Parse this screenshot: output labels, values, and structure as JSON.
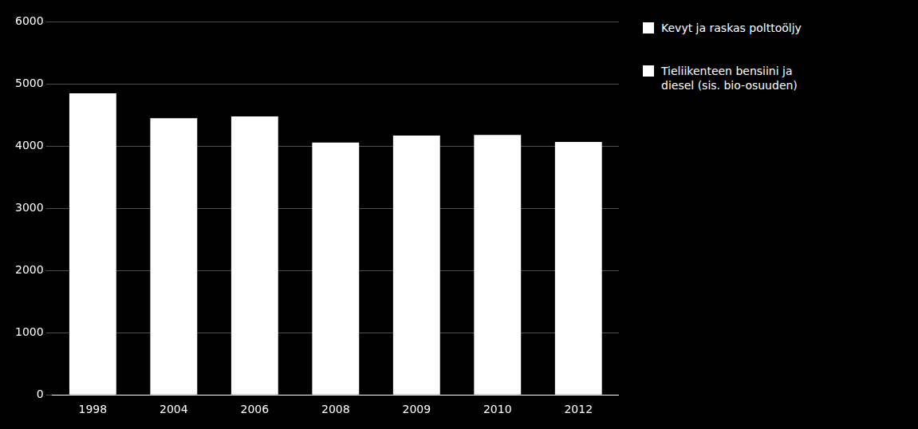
{
  "chart_data": {
    "type": "bar",
    "categories": [
      "1998",
      "2004",
      "2006",
      "2008",
      "2009",
      "2010",
      "2012"
    ],
    "values": [
      4850,
      4450,
      4480,
      4060,
      4170,
      4180,
      4070
    ],
    "color": "#ffffff",
    "ylim": [
      0,
      6000
    ],
    "yticks": [
      0,
      1000,
      2000,
      3000,
      4000,
      5000,
      6000
    ],
    "grid": true,
    "legend": "right",
    "legend_entries": [
      {
        "label": "Kevyt ja raskas polttoöljy",
        "color": "#ffffff"
      },
      {
        "label": "Tieliikenteen bensiini ja\ndiesel (sis. bio-osuuden)",
        "color": "#ffffff"
      }
    ]
  }
}
